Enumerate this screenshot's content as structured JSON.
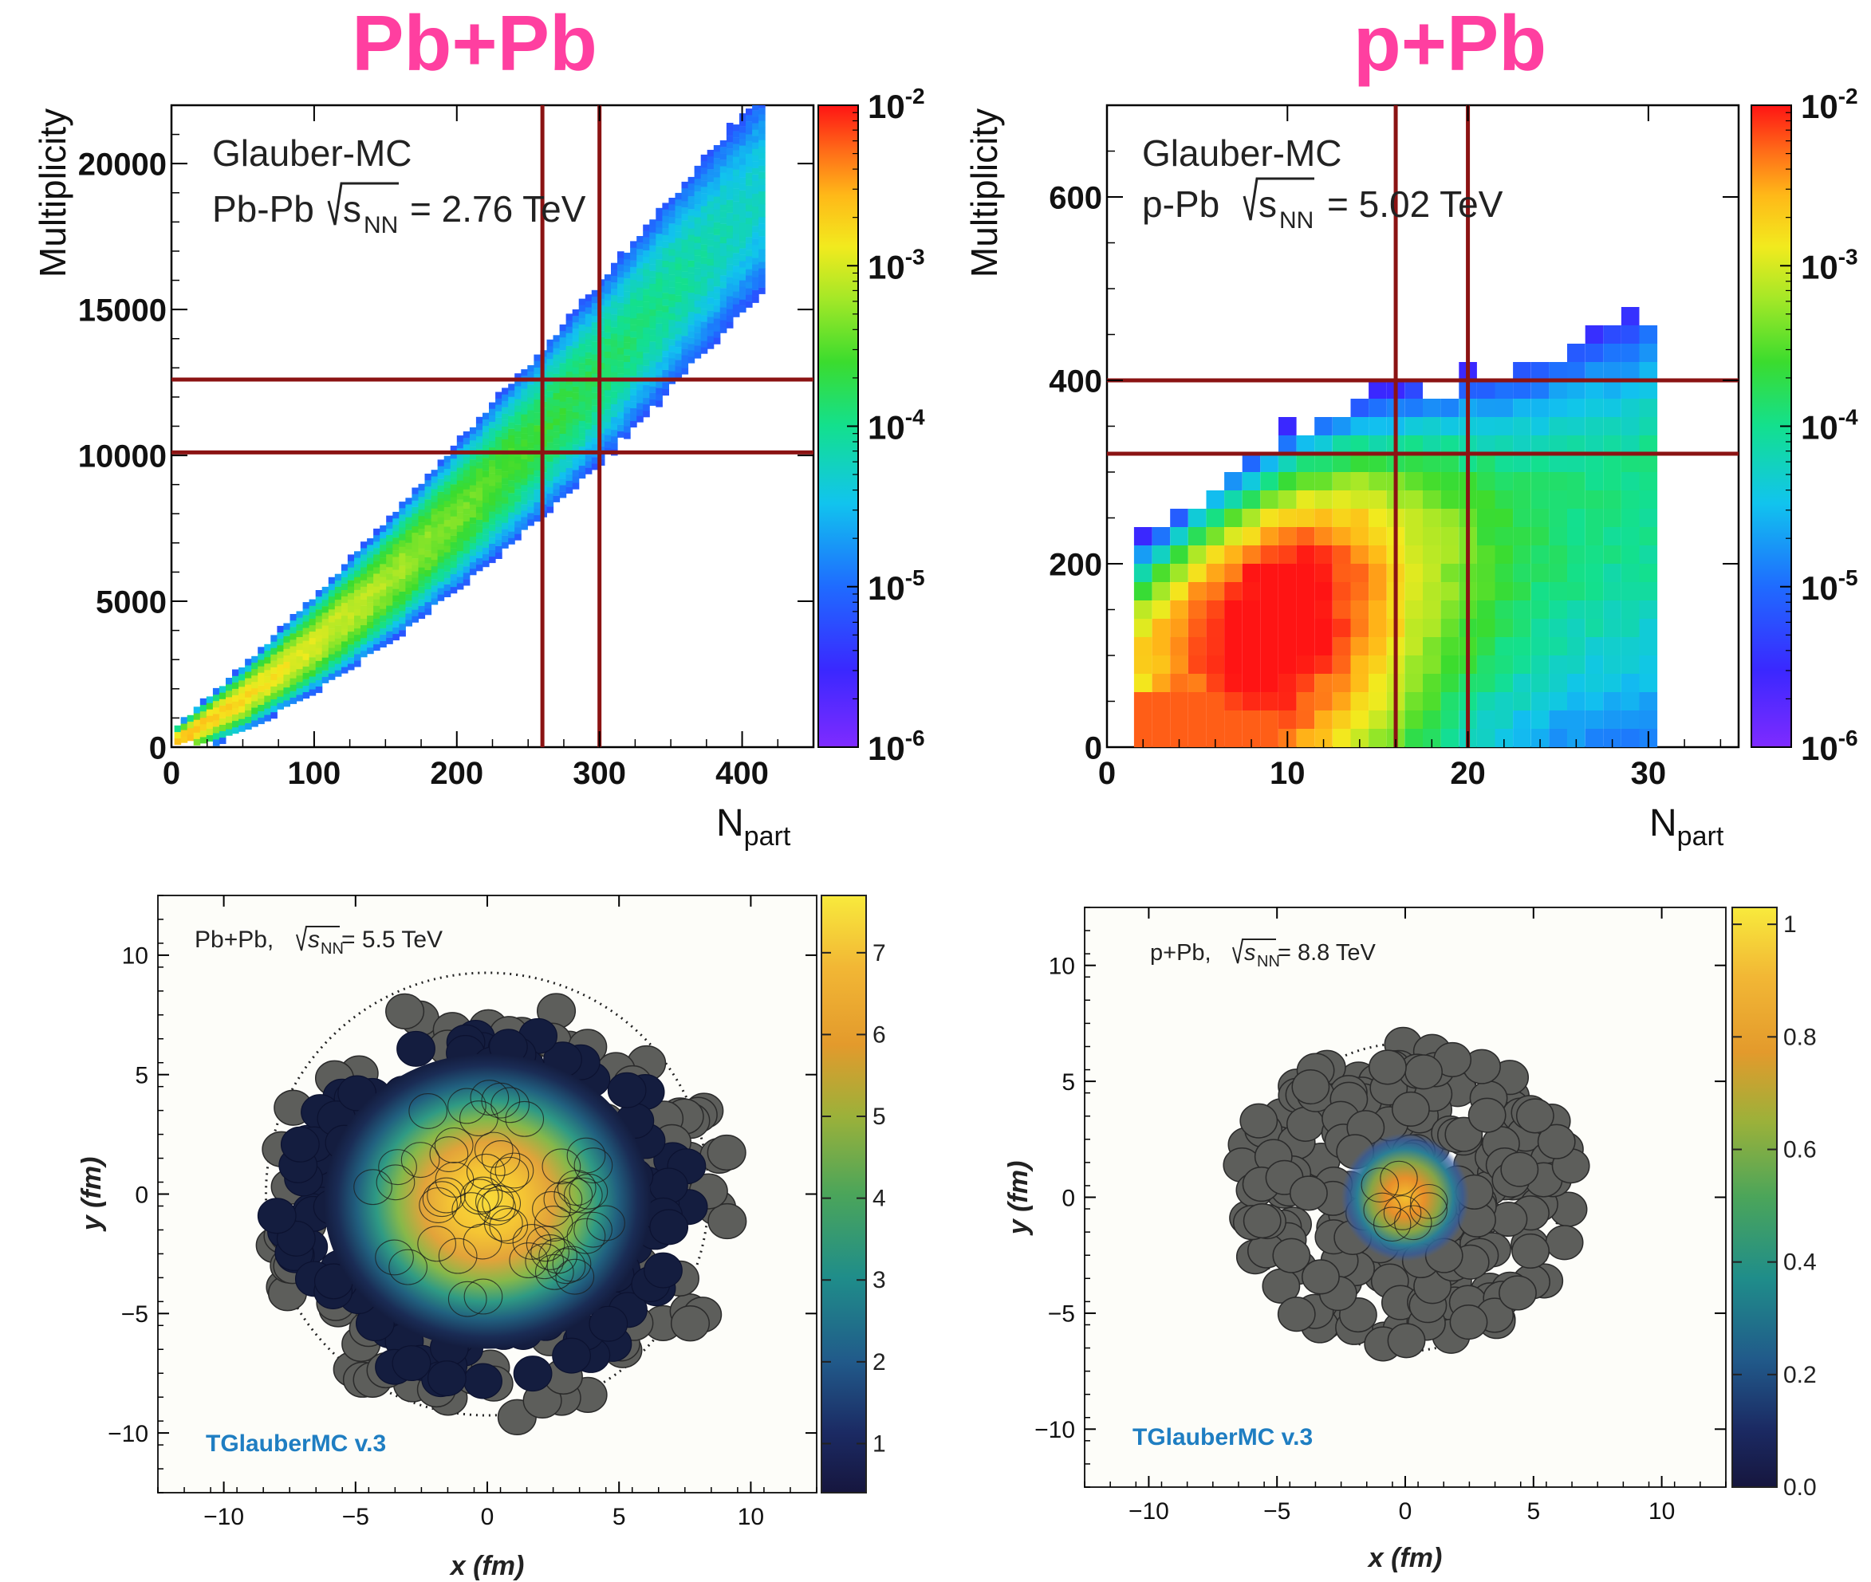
{
  "headings": {
    "left": "Pb+Pb",
    "right": "p+Pb"
  },
  "colors": {
    "heading": "#ff3fa0",
    "cut_line": "#8b1313",
    "tglauber": "#1f7ec2",
    "nucleon_gray": "#5d5e5b"
  },
  "chart_data": [
    {
      "id": "pbpb-mult",
      "type": "heatmap",
      "xlabel_main": "N",
      "xlabel_sub": "part",
      "ylabel": "Multiplicity",
      "xlim": [
        0,
        450
      ],
      "ylim": [
        0,
        22000
      ],
      "xticks": [
        {
          "v": 0,
          "label": "0"
        },
        {
          "v": 100,
          "label": "100"
        },
        {
          "v": 200,
          "label": "200"
        },
        {
          "v": 300,
          "label": "300"
        },
        {
          "v": 400,
          "label": "400"
        }
      ],
      "yticks": [
        {
          "v": 0,
          "label": "0"
        },
        {
          "v": 5000,
          "label": "5000"
        },
        {
          "v": 10000,
          "label": "10000"
        },
        {
          "v": 15000,
          "label": "15000"
        },
        {
          "v": 20000,
          "label": "20000"
        }
      ],
      "annotation": {
        "line1": "Glauber-MC",
        "system": "Pb-Pb",
        "s": "s",
        "sub": "NN",
        "value": "= 2.76 TeV"
      },
      "colorbar": {
        "scale": "log",
        "range": [
          1e-06,
          0.01
        ],
        "ticks": [
          {
            "base": "10",
            "exp": "-2"
          },
          {
            "base": "10",
            "exp": "-3"
          },
          {
            "base": "10",
            "exp": "-4"
          },
          {
            "base": "10",
            "exp": "-5"
          },
          {
            "base": "10",
            "exp": "-6"
          }
        ]
      },
      "cut_lines": {
        "x": [
          260,
          300
        ],
        "y": [
          10100,
          12600
        ]
      },
      "density_band": [
        [
          0,
          0
        ],
        [
          50,
          1600
        ],
        [
          100,
          3500
        ],
        [
          150,
          5600
        ],
        [
          200,
          7900
        ],
        [
          250,
          10300
        ],
        [
          300,
          12800
        ],
        [
          350,
          15600
        ],
        [
          410,
          18800
        ]
      ]
    },
    {
      "id": "ppb-mult",
      "type": "heatmap",
      "xlabel_main": "N",
      "xlabel_sub": "part",
      "ylabel": "Multiplicity",
      "xlim": [
        0,
        35
      ],
      "ylim": [
        0,
        700
      ],
      "xticks": [
        {
          "v": 0,
          "label": "0"
        },
        {
          "v": 10,
          "label": "10"
        },
        {
          "v": 20,
          "label": "20"
        },
        {
          "v": 30,
          "label": "30"
        }
      ],
      "yticks": [
        {
          "v": 0,
          "label": "0"
        },
        {
          "v": 200,
          "label": "200"
        },
        {
          "v": 400,
          "label": "400"
        },
        {
          "v": 600,
          "label": "600"
        }
      ],
      "annotation": {
        "line1": "Glauber-MC",
        "system": "p-Pb",
        "s": "s",
        "sub": "NN",
        "value": "= 5.02 TeV"
      },
      "colorbar": {
        "scale": "log",
        "range": [
          1e-06,
          0.01
        ],
        "ticks": [
          {
            "base": "10",
            "exp": "-2"
          },
          {
            "base": "10",
            "exp": "-3"
          },
          {
            "base": "10",
            "exp": "-4"
          },
          {
            "base": "10",
            "exp": "-5"
          },
          {
            "base": "10",
            "exp": "-6"
          }
        ]
      },
      "cut_lines": {
        "x": [
          16,
          20
        ],
        "y": [
          320,
          400
        ]
      }
    },
    {
      "id": "pbpb-event",
      "type": "scatter",
      "xlabel": "x (fm)",
      "ylabel": "y (fm)",
      "xlim": [
        -12.5,
        12.5
      ],
      "ylim": [
        -12.5,
        12.5
      ],
      "xticks": [
        {
          "v": -10,
          "label": "−10"
        },
        {
          "v": -5,
          "label": "−5"
        },
        {
          "v": 0,
          "label": "0"
        },
        {
          "v": 5,
          "label": "5"
        },
        {
          "v": 10,
          "label": "10"
        }
      ],
      "yticks": [
        {
          "v": 10,
          "label": "10"
        },
        {
          "v": 5,
          "label": "5"
        },
        {
          "v": 0,
          "label": "0"
        },
        {
          "v": -5,
          "label": "−5"
        },
        {
          "v": -10,
          "label": "−10"
        }
      ],
      "annotation": {
        "system": "Pb+Pb, ",
        "s": "s",
        "sub": "NN",
        "value": " = 5.5 TeV"
      },
      "watermark": "TGlauberMC v.3",
      "colorbar": {
        "range": [
          0.4,
          7.7
        ],
        "ticks": [
          {
            "v": 7,
            "label": "7"
          },
          {
            "v": 6,
            "label": "6"
          },
          {
            "v": 5,
            "label": "5"
          },
          {
            "v": 4,
            "label": "4"
          },
          {
            "v": 3,
            "label": "3"
          },
          {
            "v": 2,
            "label": "2"
          },
          {
            "v": 1,
            "label": "1"
          }
        ]
      },
      "nucleus_radius": 8.4,
      "hot_spot": {
        "x": 0,
        "y": -0.3,
        "rx": 6.2,
        "ry": 5.6,
        "peak": 7.5
      }
    },
    {
      "id": "ppb-event",
      "type": "scatter",
      "xlabel": "x (fm)",
      "ylabel": "y (fm)",
      "xlim": [
        -12.5,
        12.5
      ],
      "ylim": [
        -12.5,
        12.5
      ],
      "xticks": [
        {
          "v": -10,
          "label": "−10"
        },
        {
          "v": -5,
          "label": "−5"
        },
        {
          "v": 0,
          "label": "0"
        },
        {
          "v": 5,
          "label": "5"
        },
        {
          "v": 10,
          "label": "10"
        }
      ],
      "yticks": [
        {
          "v": 10,
          "label": "10"
        },
        {
          "v": 5,
          "label": "5"
        },
        {
          "v": 0,
          "label": "0"
        },
        {
          "v": -5,
          "label": "−5"
        },
        {
          "v": -10,
          "label": "−10"
        }
      ],
      "annotation": {
        "system": "p+Pb, ",
        "s": "s",
        "sub": "NN",
        "value": " = 8.8 TeV"
      },
      "watermark": "TGlauberMC v.3",
      "colorbar": {
        "range": [
          0,
          1.03
        ],
        "ticks": [
          {
            "v": 1,
            "label": "1"
          },
          {
            "v": 0.8,
            "label": "0.8"
          },
          {
            "v": 0.6,
            "label": "0.6"
          },
          {
            "v": 0.4,
            "label": "0.4"
          },
          {
            "v": 0.2,
            "label": "0.2"
          },
          {
            "v": 0,
            "label": "0.0"
          }
        ]
      },
      "nucleus_radius": 6.0,
      "hot_spot": {
        "x": 0,
        "y": 0,
        "rx": 2.5,
        "ry": 2.5,
        "peak": 1.0
      }
    }
  ]
}
